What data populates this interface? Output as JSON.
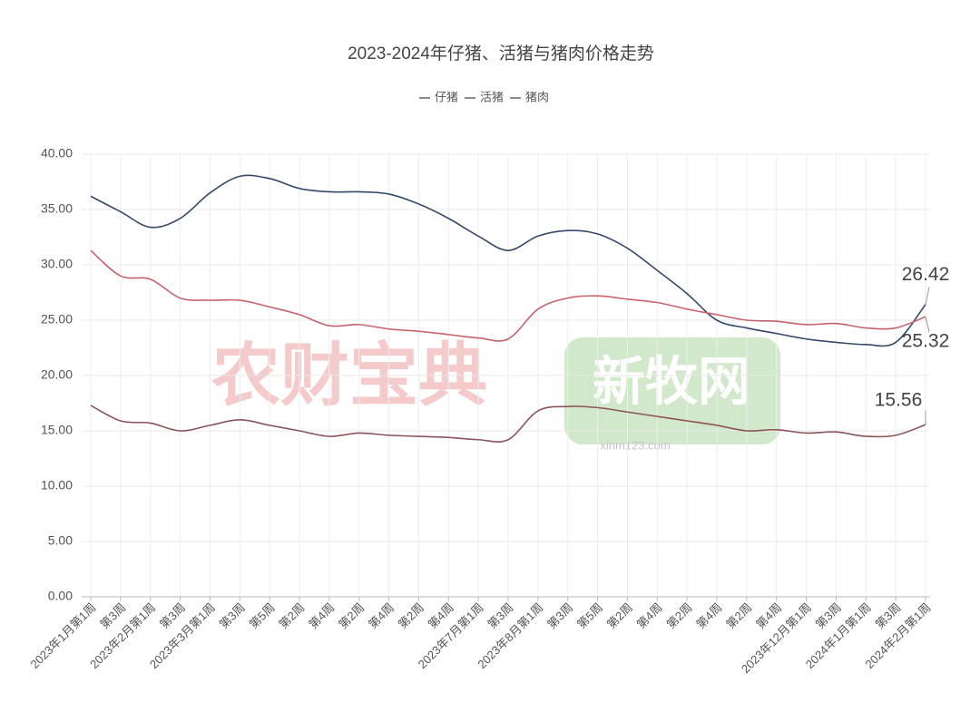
{
  "chart_data": {
    "type": "line",
    "title": "2023-2024年仔猪、活猪与猪肉价格走势",
    "categories": [
      "2023年1月第1周",
      "第3周",
      "2023年2月第1周",
      "第3周",
      "2023年3月第1周",
      "第3周",
      "第5周",
      "第2周",
      "第4周",
      "第2周",
      "第4周",
      "第2周",
      "第4周",
      "2023年7月第1周",
      "第3周",
      "2023年8月第1周",
      "第3周",
      "第5周",
      "第2周",
      "第4周",
      "第2周",
      "第4周",
      "第2周",
      "第4周",
      "2023年12月第1周",
      "第3周",
      "2024年1月第1周",
      "第3周",
      "2024年2月第1周"
    ],
    "series": [
      {
        "name": "仔猪",
        "color": "#34496b",
        "values": [
          36.2,
          34.8,
          33.4,
          34.2,
          36.5,
          38.0,
          37.8,
          36.9,
          36.6,
          36.6,
          36.4,
          35.5,
          34.2,
          32.6,
          31.3,
          32.6,
          33.1,
          32.8,
          31.5,
          29.5,
          27.4,
          25.0,
          24.3,
          23.8,
          23.3,
          23.0,
          22.8,
          23.0,
          26.42
        ]
      },
      {
        "name": "活猪",
        "color": "#8a5458",
        "values": [
          17.3,
          15.9,
          15.7,
          15.0,
          15.5,
          16.0,
          15.5,
          15.0,
          14.5,
          14.8,
          14.6,
          14.5,
          14.4,
          14.2,
          14.2,
          16.8,
          17.2,
          17.1,
          16.7,
          16.3,
          15.9,
          15.5,
          15.0,
          15.1,
          14.8,
          14.9,
          14.5,
          14.6,
          15.56
        ]
      },
      {
        "name": "猪肉",
        "color": "#c8636c",
        "values": [
          31.3,
          29.0,
          28.7,
          27.0,
          26.8,
          26.8,
          26.2,
          25.5,
          24.5,
          24.6,
          24.2,
          24.0,
          23.7,
          23.4,
          23.3,
          26.0,
          27.0,
          27.2,
          26.9,
          26.6,
          26.0,
          25.5,
          25.0,
          24.9,
          24.6,
          24.7,
          24.3,
          24.3,
          25.32
        ]
      }
    ],
    "ylim": [
      0,
      40
    ],
    "yticks": [
      {
        "value": 0,
        "label": "0.00"
      },
      {
        "value": 5,
        "label": "5.00"
      },
      {
        "value": 10,
        "label": "10.00"
      },
      {
        "value": 15,
        "label": "15.00"
      },
      {
        "value": 20,
        "label": "20.00"
      },
      {
        "value": 25,
        "label": "25.00"
      },
      {
        "value": 30,
        "label": "30.00"
      },
      {
        "value": 35,
        "label": "35.00"
      },
      {
        "value": 40,
        "label": "40.00"
      }
    ],
    "grid": true,
    "watermarks": [
      "农财宝典",
      "新牧网",
      "xinm123.com"
    ]
  }
}
